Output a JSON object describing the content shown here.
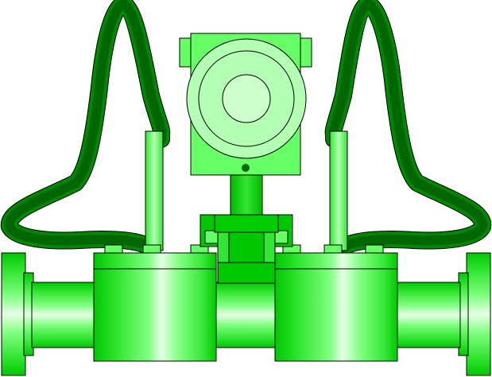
{
  "image": {
    "subject": "flowmeter-transmitter-graphic",
    "visible_text": []
  },
  "colors": {
    "background": "#ffffff",
    "pipe_dark": "#00c800",
    "pipe_mid": "#33e633",
    "pipe_light": "#66ff66",
    "pipe_highlight": "#b3ffb3",
    "pipe_shine": "#e6ffe6",
    "tube_dark_green": "#006600",
    "tube_green": "#009900",
    "housing": "#66ff66",
    "display_ring": "#b3ffb3",
    "display_center": "#ccffcc",
    "indicator_dot": "#006600",
    "outline": "#000000"
  },
  "icons": {
    "transmitter": "transmitter-housing-icon",
    "display": "display-dial-icon",
    "indicator": "status-dot-icon"
  }
}
